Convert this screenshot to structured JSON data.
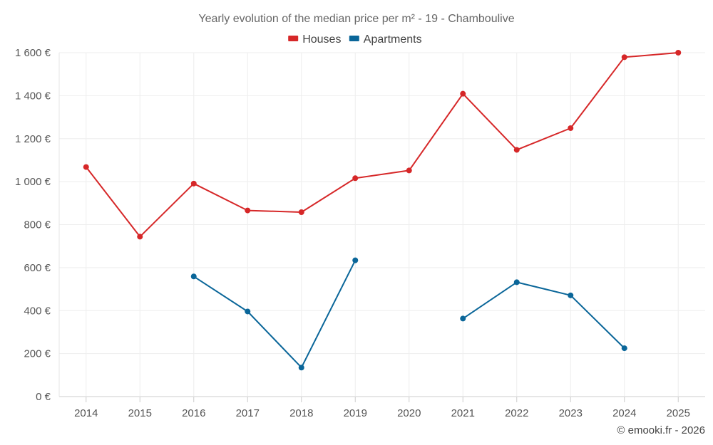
{
  "chart_data": {
    "type": "line",
    "title": "Yearly evolution of the median price per m² - 19 - Chamboulive",
    "x": [
      "2014",
      "2015",
      "2016",
      "2017",
      "2018",
      "2019",
      "2020",
      "2021",
      "2022",
      "2023",
      "2024",
      "2025"
    ],
    "series": [
      {
        "name": "Houses",
        "color": "#d62728",
        "values": [
          1068,
          744,
          991,
          866,
          858,
          1016,
          1052,
          1409,
          1148,
          1249,
          1579,
          1600
        ]
      },
      {
        "name": "Apartments",
        "color": "#0a6699",
        "values": [
          null,
          null,
          559,
          396,
          135,
          634,
          null,
          363,
          532,
          471,
          225,
          null
        ]
      }
    ],
    "yticks": [
      "0 €",
      "200 €",
      "400 €",
      "600 €",
      "800 €",
      "1 000 €",
      "1 200 €",
      "1 400 €",
      "1 600 €"
    ],
    "ytick_values": [
      0,
      200,
      400,
      600,
      800,
      1000,
      1200,
      1400,
      1600
    ],
    "ylim": [
      0,
      1600
    ],
    "xlabel": "",
    "ylabel": "",
    "grid": true,
    "legend_position": "top-center"
  },
  "credit": "© emooki.fr - 2026"
}
